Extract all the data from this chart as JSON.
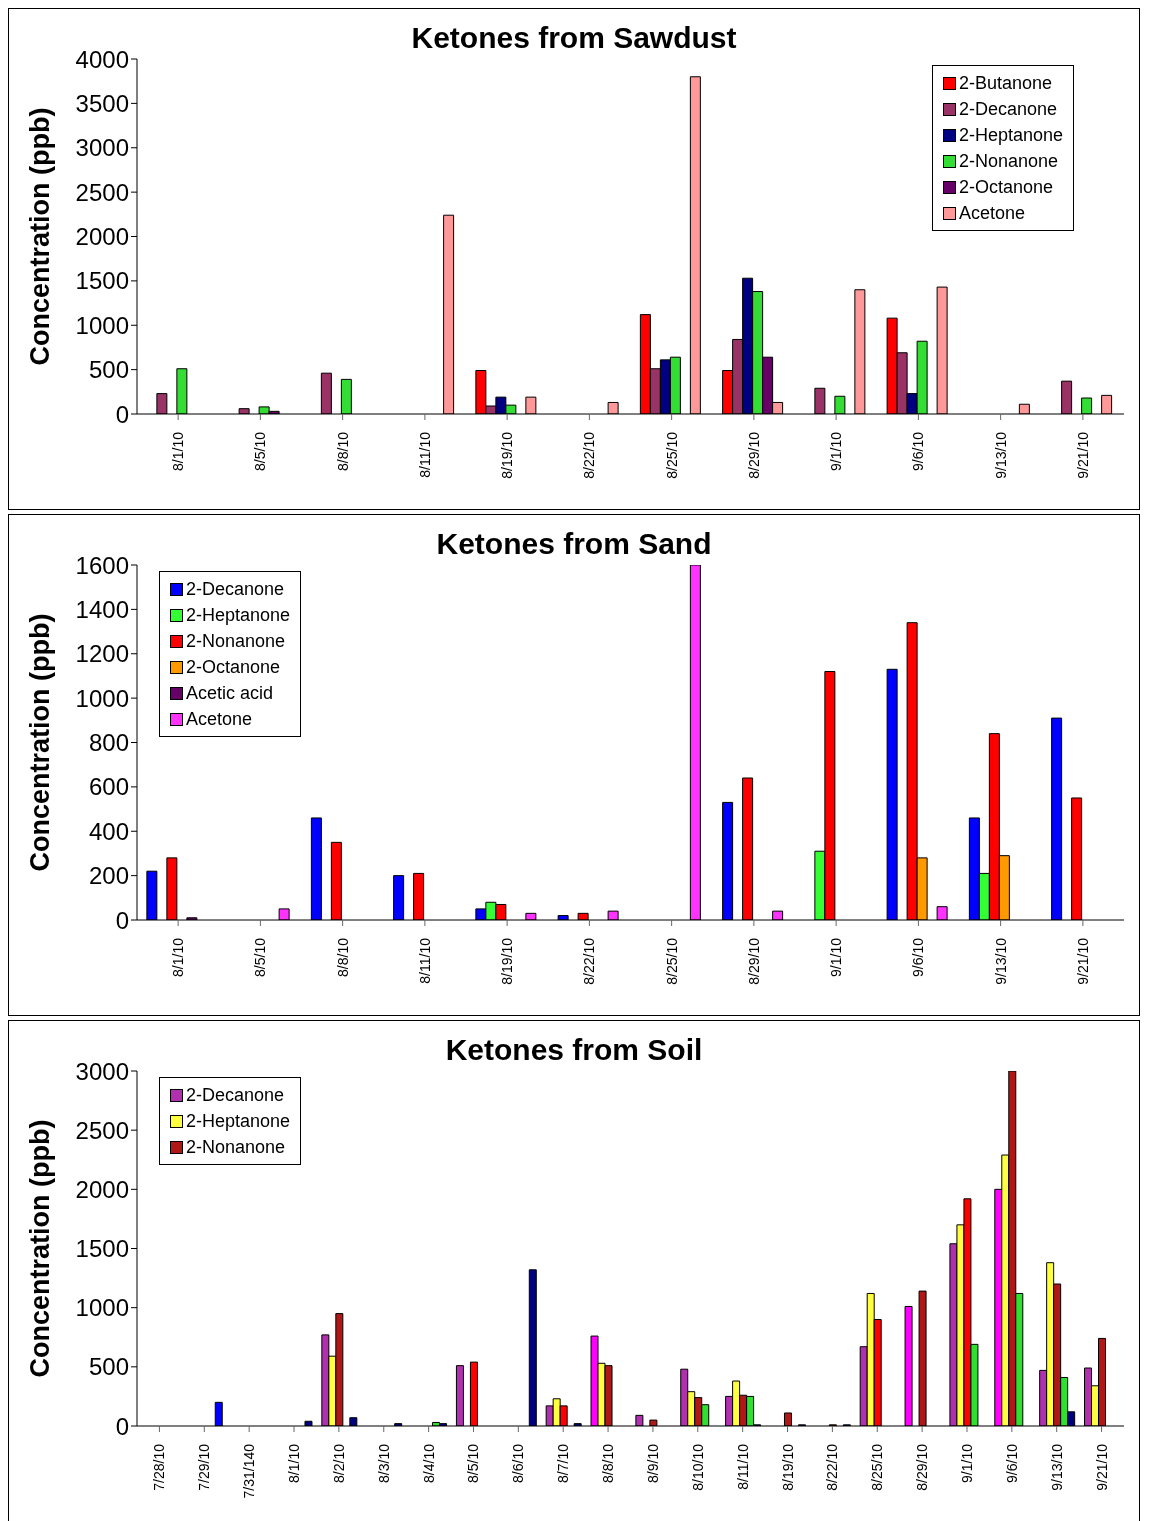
{
  "chart_data": [
    {
      "type": "bar",
      "title": "Ketones from Sawdust",
      "ylabel": "Concentration (ppb)",
      "categories": [
        "8/1/10",
        "8/5/10",
        "8/8/10",
        "8/11/10",
        "8/19/10",
        "8/22/10",
        "8/25/10",
        "8/29/10",
        "9/1/10",
        "9/6/10",
        "9/13/10",
        "9/21/10"
      ],
      "series": [
        {
          "name": "2-Butanone",
          "color": "#ff0000",
          "values": [
            null,
            null,
            null,
            null,
            490,
            null,
            1120,
            490,
            null,
            1080,
            null,
            null
          ]
        },
        {
          "name": "2-Decanone",
          "color": "#993366",
          "values": [
            230,
            60,
            460,
            null,
            90,
            null,
            510,
            840,
            290,
            690,
            null,
            370
          ]
        },
        {
          "name": "2-Heptanone",
          "color": "#000080",
          "values": [
            null,
            null,
            null,
            null,
            190,
            null,
            610,
            1530,
            null,
            230,
            null,
            null
          ]
        },
        {
          "name": "2-Nonanone",
          "color": "#33dd33",
          "values": [
            510,
            80,
            390,
            null,
            100,
            null,
            640,
            1380,
            200,
            820,
            null,
            180
          ]
        },
        {
          "name": "2-Octanone",
          "color": "#660066",
          "values": [
            null,
            30,
            null,
            null,
            null,
            null,
            null,
            640,
            null,
            null,
            null,
            null
          ]
        },
        {
          "name": "Acetone",
          "color": "#ff9999",
          "values": [
            null,
            null,
            null,
            2240,
            190,
            130,
            3800,
            130,
            1400,
            1430,
            110,
            210
          ]
        }
      ],
      "ylim": [
        0,
        4000
      ],
      "yticks": [
        0,
        500,
        1000,
        1500,
        2000,
        2500,
        3000,
        3500,
        4000
      ],
      "legend": "top right",
      "grid": false
    },
    {
      "type": "bar",
      "title": "Ketones from Sand",
      "ylabel": "Concentration (ppb)",
      "categories": [
        "8/1/10",
        "8/5/10",
        "8/8/10",
        "8/11/10",
        "8/19/10",
        "8/22/10",
        "8/25/10",
        "8/29/10",
        "9/1/10",
        "9/6/10",
        "9/13/10",
        "9/21/10"
      ],
      "series": [
        {
          "name": "2-Decanone",
          "color": "#0000ff",
          "values": [
            220,
            null,
            460,
            200,
            50,
            20,
            null,
            530,
            null,
            1130,
            460,
            910
          ]
        },
        {
          "name": "2-Heptanone",
          "color": "#33ff33",
          "values": [
            null,
            null,
            null,
            null,
            80,
            null,
            null,
            null,
            310,
            null,
            210,
            null
          ]
        },
        {
          "name": "2-Nonanone",
          "color": "#ff0000",
          "values": [
            280,
            null,
            350,
            210,
            70,
            30,
            null,
            640,
            1120,
            1340,
            840,
            550
          ]
        },
        {
          "name": "2-Octanone",
          "color": "#ff9900",
          "values": [
            null,
            null,
            null,
            null,
            null,
            null,
            null,
            null,
            null,
            280,
            290,
            null
          ]
        },
        {
          "name": "Acetic acid",
          "color": "#660066",
          "values": [
            10,
            null,
            null,
            null,
            null,
            null,
            null,
            null,
            null,
            null,
            null,
            null
          ]
        },
        {
          "name": "Acetone",
          "color": "#ff33ff",
          "values": [
            null,
            50,
            null,
            null,
            30,
            40,
            1600,
            40,
            null,
            60,
            null,
            null
          ]
        }
      ],
      "ylim": [
        0,
        1600
      ],
      "yticks": [
        0,
        200,
        400,
        600,
        800,
        1000,
        1200,
        1400,
        1600
      ],
      "legend": "top left",
      "grid": false
    },
    {
      "type": "bar",
      "title": "Ketones from Soil",
      "ylabel": "Concentration (ppb)",
      "categories": [
        "7/28/10",
        "7/29/10",
        "7/31/140",
        "8/1/10",
        "8/2/10",
        "8/3/10",
        "8/4/10",
        "8/5/10",
        "8/6/10",
        "8/7/10",
        "8/8/10",
        "8/9/10",
        "8/10/10",
        "8/11/10",
        "8/19/10",
        "8/22/10",
        "8/25/10",
        "8/29/10",
        "9/1/10",
        "9/6/10",
        "9/13/10",
        "9/21/10"
      ],
      "series": [
        {
          "name": "2-Decanone",
          "color": "#b030b0",
          "colors": [
            "#b030b0",
            "#b030b0",
            "#b030b0",
            "#b030b0",
            "#b030b0",
            "#b030b0",
            "#b030b0",
            "#b030b0",
            "#b030b0",
            "#b030b0",
            "#ff00ff",
            "#b030b0",
            "#b030b0",
            "#b030b0",
            "#b030b0",
            "#b030b0",
            "#b030b0",
            "#ff00ff",
            "#b030b0",
            "#ff00ff",
            "#b030b0",
            "#b030b0"
          ],
          "values": [
            null,
            null,
            null,
            null,
            770,
            null,
            null,
            510,
            null,
            170,
            760,
            90,
            480,
            250,
            null,
            null,
            670,
            1010,
            1540,
            2000,
            470,
            490
          ]
        },
        {
          "name": "2-Heptanone",
          "color": "#ffff40",
          "values": [
            null,
            null,
            null,
            null,
            590,
            null,
            null,
            null,
            null,
            230,
            530,
            null,
            290,
            380,
            null,
            null,
            1120,
            null,
            1700,
            2290,
            1380,
            340
          ]
        },
        {
          "name": "2-Nonanone",
          "color": "#b01818",
          "colors": [
            "#b01818",
            "#b01818",
            "#b01818",
            "#b01818",
            "#b01818",
            "#b01818",
            "#b01818",
            "#ff0000",
            "#b01818",
            "#ff0000",
            "#b01818",
            "#b01818",
            "#b01818",
            "#b01818",
            "#b01818",
            "#b01818",
            "#ff0000",
            "#b01818",
            "#ff0000",
            "#b01818",
            "#b01818",
            "#b01818"
          ],
          "values": [
            null,
            null,
            null,
            null,
            950,
            null,
            null,
            540,
            null,
            170,
            510,
            50,
            240,
            260,
            110,
            10,
            900,
            1140,
            1920,
            3000,
            1200,
            740
          ]
        },
        {
          "color": "#30e030",
          "values": [
            null,
            null,
            null,
            null,
            null,
            null,
            30,
            null,
            null,
            null,
            null,
            null,
            180,
            250,
            null,
            null,
            null,
            null,
            690,
            1120,
            410,
            null
          ]
        },
        {
          "color": "#000080",
          "colors": [
            "#000080",
            "#0000ff",
            "#000080",
            "#000080",
            "#000080",
            "#000080",
            "#000080",
            "#000080",
            "#000080",
            "#000080",
            "#000080",
            "#000080",
            "#000080",
            "#000080",
            "#000080",
            "#000080",
            "#000080",
            "#000080",
            "#000080",
            "#000080",
            "#000080",
            "#000080"
          ],
          "values": [
            null,
            200,
            null,
            40,
            70,
            20,
            20,
            null,
            1320,
            20,
            null,
            null,
            null,
            10,
            10,
            10,
            null,
            null,
            null,
            null,
            120,
            null
          ]
        }
      ],
      "ylim": [
        0,
        3000
      ],
      "yticks": [
        0,
        500,
        1000,
        1500,
        2000,
        2500,
        3000
      ],
      "legend": "top left",
      "grid": false
    }
  ]
}
